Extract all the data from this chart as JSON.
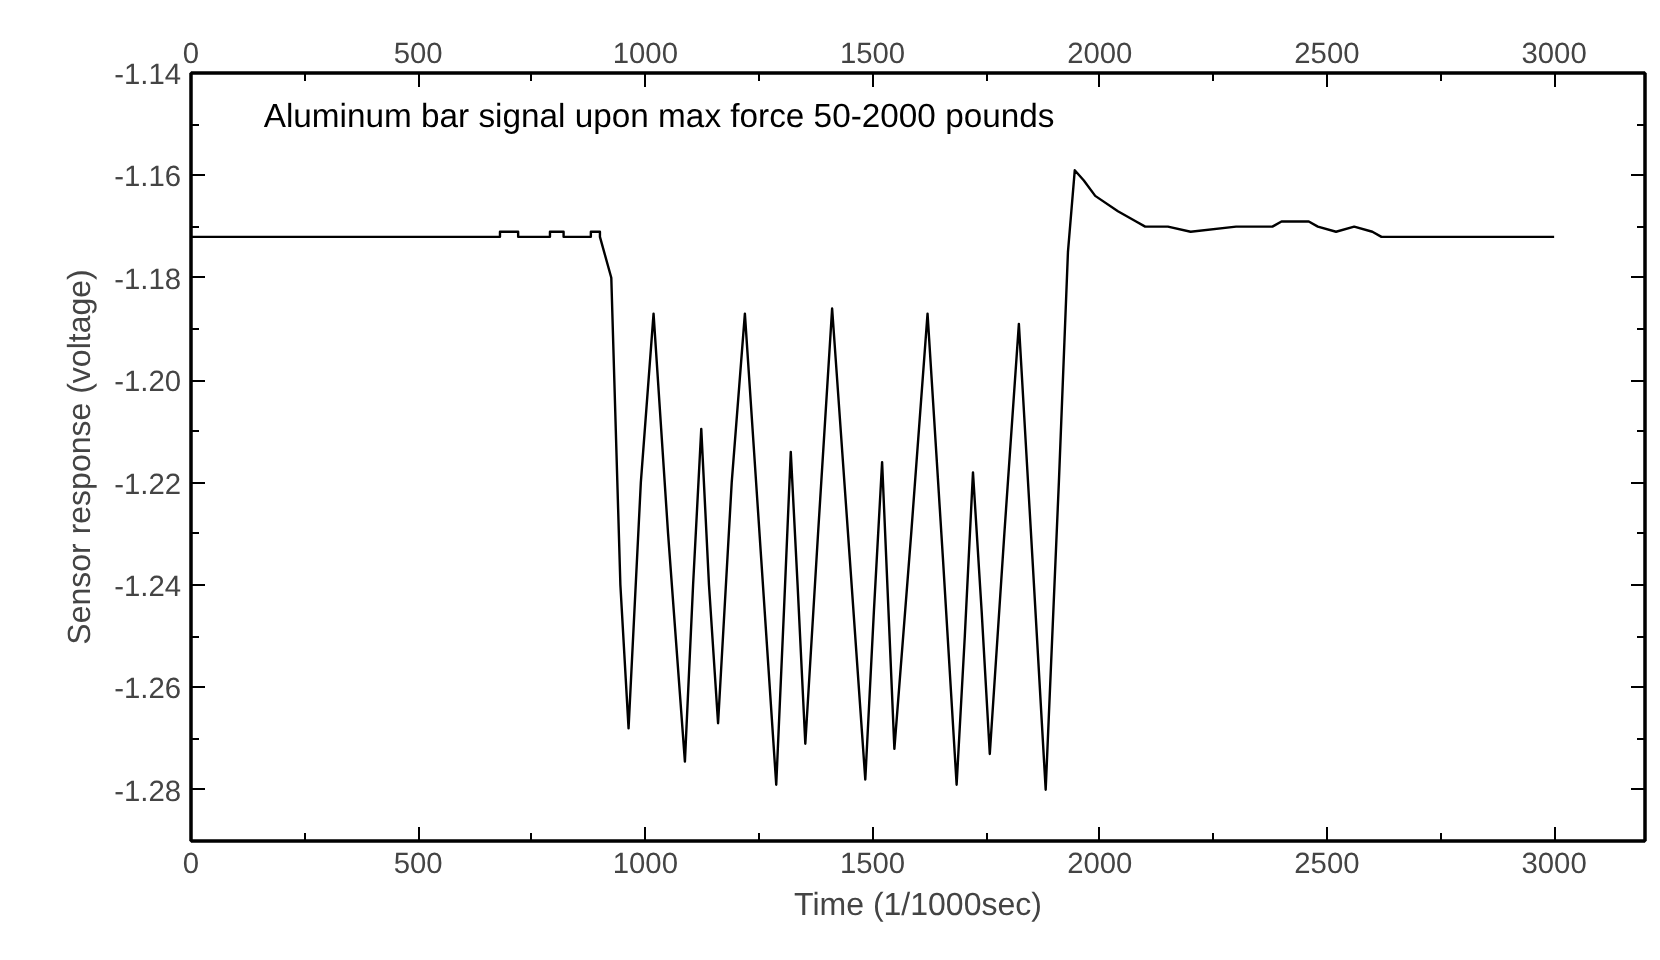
{
  "chart_data": {
    "type": "line",
    "title": "Aluminum bar signal upon max force 50-2000 pounds",
    "xlabel": "Time (1/1000sec)",
    "ylabel": "Sensor response (voltage)",
    "xlim": [
      0,
      3200
    ],
    "xticks": [
      0,
      500,
      1000,
      1500,
      2000,
      2500,
      3000
    ],
    "x2lim": [
      0,
      3200
    ],
    "x2ticks": [
      0,
      500,
      1000,
      1500,
      2000,
      2500,
      3000
    ],
    "ylim": [
      -1.29,
      -1.14
    ],
    "yticks": [
      -1.28,
      -1.26,
      -1.24,
      -1.22,
      {
        "value": -1.2,
        "label": "-1.20"
      },
      -1.18,
      -1.16,
      -1.14
    ],
    "line_style": "solid",
    "series": [
      {
        "color": "#000000",
        "x": [
          0,
          680,
          680,
          720,
          720,
          790,
          790,
          820,
          820,
          880,
          880,
          900,
          900,
          925,
          945,
          963,
          990,
          1018,
          1050,
          1087,
          1105,
          1123,
          1140,
          1160,
          1190,
          1219,
          1255,
          1288,
          1305,
          1320,
          1335,
          1352,
          1380,
          1411,
          1450,
          1484,
          1503,
          1521,
          1535,
          1548,
          1585,
          1621,
          1655,
          1685,
          1703,
          1721,
          1740,
          1758,
          1790,
          1822,
          1852,
          1881,
          1910,
          1930,
          1945,
          1965,
          1990,
          2040,
          2080,
          2100,
          2150,
          2200,
          2300,
          2380,
          2400,
          2460,
          2480,
          2520,
          2560,
          2600,
          2620,
          3000
        ],
        "values": [
          -1.172,
          -1.172,
          -1.171,
          -1.171,
          -1.172,
          -1.172,
          -1.171,
          -1.171,
          -1.172,
          -1.172,
          -1.171,
          -1.171,
          -1.172,
          -1.18,
          -1.24,
          -1.268,
          -1.22,
          -1.187,
          -1.23,
          -1.2745,
          -1.24,
          -1.2095,
          -1.24,
          -1.267,
          -1.22,
          -1.187,
          -1.235,
          -1.279,
          -1.245,
          -1.214,
          -1.24,
          -1.271,
          -1.23,
          -1.186,
          -1.235,
          -1.278,
          -1.245,
          -1.216,
          -1.245,
          -1.272,
          -1.23,
          -1.187,
          -1.235,
          -1.279,
          -1.25,
          -1.218,
          -1.245,
          -1.273,
          -1.23,
          -1.189,
          -1.235,
          -1.28,
          -1.22,
          -1.175,
          -1.159,
          -1.161,
          -1.164,
          -1.167,
          -1.169,
          -1.17,
          -1.17,
          -1.171,
          -1.17,
          -1.17,
          -1.169,
          -1.169,
          -1.17,
          -1.171,
          -1.17,
          -1.171,
          -1.172,
          -1.172
        ]
      }
    ]
  }
}
